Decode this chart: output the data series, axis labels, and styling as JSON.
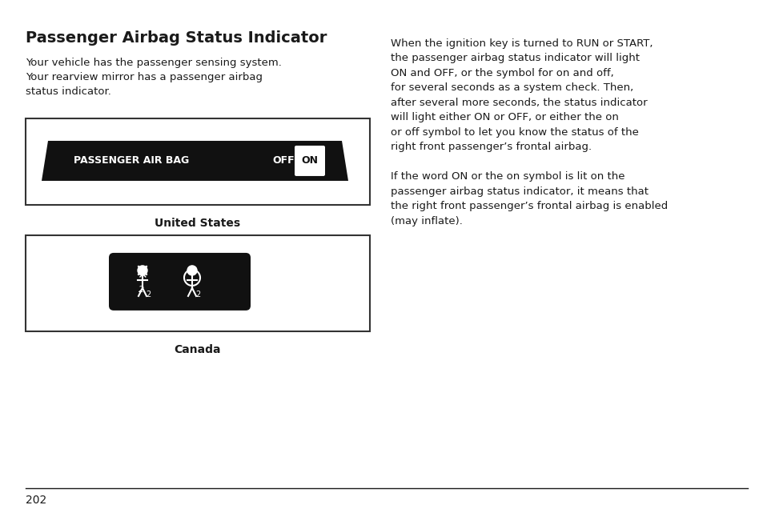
{
  "title": "Passenger Airbag Status Indicator",
  "left_body_text": "Your vehicle has the passenger sensing system.\nYour rearview mirror has a passenger airbag\nstatus indicator.",
  "us_label": "United States",
  "canada_label": "Canada",
  "right_text": "When the ignition key is turned to RUN or START,\nthe passenger airbag status indicator will light\nON and OFF, or the symbol for on and off,\nfor several seconds as a system check. Then,\nafter several more seconds, the status indicator\nwill light either ON or OFF, or either the on\nor off symbol to let you know the status of the\nright front passenger’s frontal airbag.\n\nIf the word ON or the on symbol is lit on the\npassenger airbag status indicator, it means that\nthe right front passenger’s frontal airbag is enabled\n(may inflate).",
  "page_number": "202",
  "bg_color": "#ffffff",
  "text_color": "#1a1a1a",
  "box_border_color": "#333333",
  "indicator_bg": "#111111",
  "indicator_text_color": "#ffffff",
  "on_box_color": "#ffffff",
  "on_box_text_color": "#111111"
}
